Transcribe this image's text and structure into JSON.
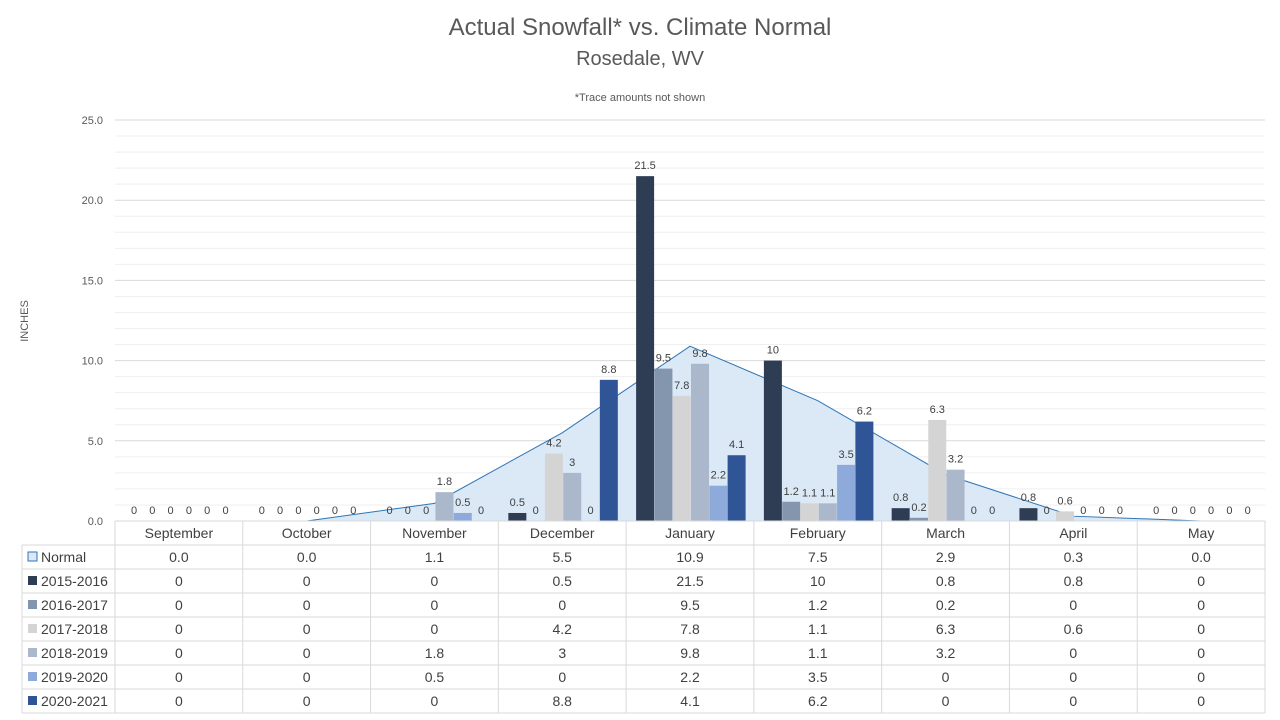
{
  "chart_data": {
    "type": "bar",
    "title": "Actual Snowfall* vs. Climate Normal",
    "subtitle": "Rosedale, WV",
    "note": "*Trace amounts not shown",
    "ylabel": "INCHES",
    "ylim": [
      0,
      25
    ],
    "yticks": [
      "0.0",
      "5.0",
      "10.0",
      "15.0",
      "20.0",
      "25.0"
    ],
    "gridlines": true,
    "categories": [
      "September",
      "October",
      "November",
      "December",
      "January",
      "February",
      "March",
      "April",
      "May"
    ],
    "normal": {
      "name": "Normal",
      "type": "area",
      "color": "#dbe8f5",
      "line_color": "#2e75b6",
      "values": [
        0.0,
        0.0,
        1.1,
        5.5,
        10.9,
        7.5,
        2.9,
        0.3,
        0.0
      ],
      "display": [
        "0.0",
        "0.0",
        "1.1",
        "5.5",
        "10.9",
        "7.5",
        "2.9",
        "0.3",
        "0.0"
      ]
    },
    "series": [
      {
        "name": "2015-2016",
        "color": "#2f3d54",
        "values": [
          0,
          0,
          0,
          0.5,
          21.5,
          10,
          0.8,
          0.8,
          0
        ]
      },
      {
        "name": "2016-2017",
        "color": "#8396ae",
        "values": [
          0,
          0,
          0,
          0,
          9.5,
          1.2,
          0.2,
          0,
          0
        ]
      },
      {
        "name": "2017-2018",
        "color": "#d4d4d4",
        "values": [
          0,
          0,
          0,
          4.2,
          7.8,
          1.1,
          6.3,
          0.6,
          0
        ]
      },
      {
        "name": "2018-2019",
        "color": "#abb7ca",
        "values": [
          0,
          0,
          1.8,
          3,
          9.8,
          1.1,
          3.2,
          0,
          0
        ]
      },
      {
        "name": "2019-2020",
        "color": "#8eaadb",
        "values": [
          0,
          0,
          0.5,
          0,
          2.2,
          3.5,
          0,
          0,
          0
        ]
      },
      {
        "name": "2020-2021",
        "color": "#2f5597",
        "values": [
          0,
          0,
          0,
          8.8,
          4.1,
          6.2,
          0,
          0,
          0
        ]
      }
    ]
  }
}
